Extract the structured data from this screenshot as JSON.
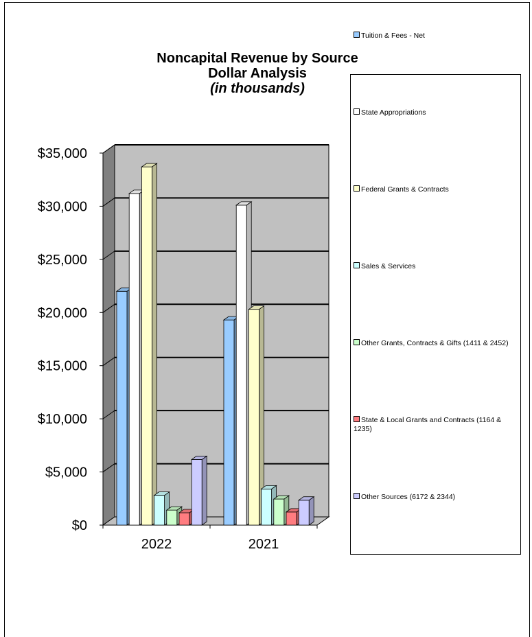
{
  "chart_data": {
    "type": "bar",
    "title": "Noncapital Revenue by Source",
    "subtitle": "Dollar Analysis",
    "subtitle2": "(in thousands)",
    "categories": [
      "2022",
      "2021"
    ],
    "series": [
      {
        "name": "Tuition & Fees - Net",
        "color": "#99ccff",
        "values": [
          22000,
          19300
        ]
      },
      {
        "name": "State Appropriations",
        "color": "#ffffff",
        "values": [
          31200,
          30100
        ]
      },
      {
        "name": "Federal Grants & Contracts",
        "color": "#ffffcc",
        "values": [
          33700,
          20300
        ]
      },
      {
        "name": "Sales & Services",
        "color": "#ccffff",
        "values": [
          2800,
          3400
        ]
      },
      {
        "name": "Other Grants, Contracts & Gifts (1411 & 2452)",
        "color": "#ccffcc",
        "values": [
          1411,
          2452
        ]
      },
      {
        "name": "State & Local Grants and Contracts (1164 & 1235)",
        "color": "#ff7c80",
        "values": [
          1164,
          1235
        ]
      },
      {
        "name": "Other Sources (6172 & 2344)",
        "color": "#ccccff",
        "values": [
          6172,
          2344
        ]
      }
    ],
    "y_ticks": [
      "$0",
      "$5,000",
      "$10,000",
      "$15,000",
      "$20,000",
      "$25,000",
      "$30,000",
      "$35,000"
    ],
    "ylim": [
      0,
      35000
    ],
    "grid": true,
    "legend_position": "right",
    "wall_color": "#c0c0c0"
  }
}
